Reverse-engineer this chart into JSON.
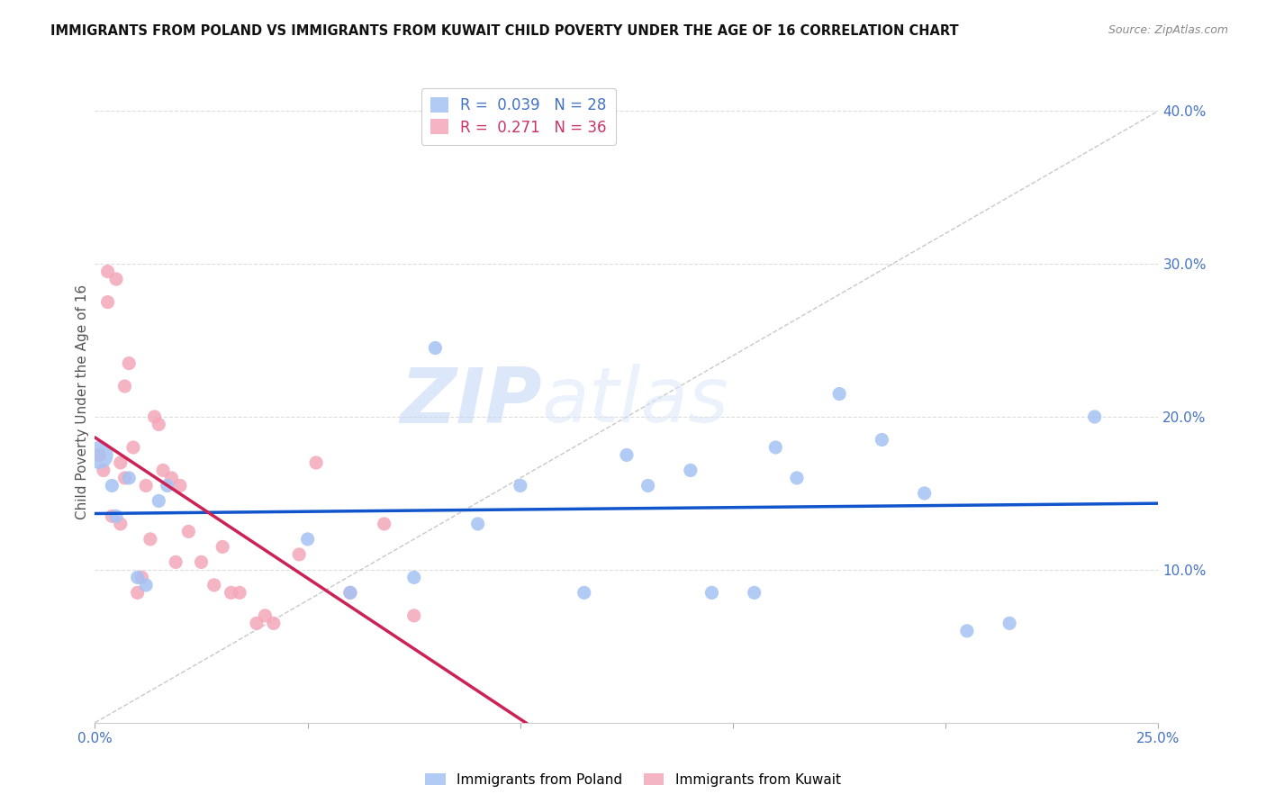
{
  "title": "IMMIGRANTS FROM POLAND VS IMMIGRANTS FROM KUWAIT CHILD POVERTY UNDER THE AGE OF 16 CORRELATION CHART",
  "source": "Source: ZipAtlas.com",
  "ylabel": "Child Poverty Under the Age of 16",
  "xlim": [
    0.0,
    0.25
  ],
  "ylim": [
    0.0,
    0.42
  ],
  "xticks": [
    0.0,
    0.05,
    0.1,
    0.15,
    0.2,
    0.25
  ],
  "xtick_labels": [
    "0.0%",
    "",
    "",
    "",
    "",
    "25.0%"
  ],
  "yticks": [
    0.1,
    0.2,
    0.3,
    0.4
  ],
  "ytick_labels": [
    "10.0%",
    "20.0%",
    "30.0%",
    "40.0%"
  ],
  "poland_color": "#a4c2f4",
  "kuwait_color": "#f4a7b9",
  "poland_R": 0.039,
  "poland_N": 28,
  "kuwait_R": 0.271,
  "kuwait_N": 36,
  "trend_line_color_poland": "#1155cc",
  "trend_line_color_kuwait": "#cc2255",
  "diagonal_line_color": "#bbbbbb",
  "watermark_zip": "ZIP",
  "watermark_atlas": "atlas",
  "poland_scatter_x": [
    0.001,
    0.004,
    0.005,
    0.008,
    0.01,
    0.012,
    0.015,
    0.017,
    0.05,
    0.06,
    0.075,
    0.08,
    0.09,
    0.1,
    0.115,
    0.125,
    0.13,
    0.14,
    0.145,
    0.155,
    0.16,
    0.165,
    0.175,
    0.185,
    0.195,
    0.205,
    0.215,
    0.235
  ],
  "poland_scatter_y": [
    0.175,
    0.155,
    0.135,
    0.16,
    0.095,
    0.09,
    0.145,
    0.155,
    0.12,
    0.085,
    0.095,
    0.245,
    0.13,
    0.155,
    0.085,
    0.175,
    0.155,
    0.165,
    0.085,
    0.085,
    0.18,
    0.16,
    0.215,
    0.185,
    0.15,
    0.06,
    0.065,
    0.2
  ],
  "kuwait_scatter_x": [
    0.001,
    0.002,
    0.003,
    0.003,
    0.004,
    0.005,
    0.006,
    0.006,
    0.007,
    0.007,
    0.008,
    0.009,
    0.01,
    0.011,
    0.012,
    0.013,
    0.014,
    0.015,
    0.016,
    0.018,
    0.019,
    0.02,
    0.022,
    0.025,
    0.028,
    0.03,
    0.032,
    0.034,
    0.038,
    0.04,
    0.042,
    0.048,
    0.052,
    0.06,
    0.068,
    0.075
  ],
  "kuwait_scatter_y": [
    0.175,
    0.165,
    0.275,
    0.295,
    0.135,
    0.29,
    0.13,
    0.17,
    0.22,
    0.16,
    0.235,
    0.18,
    0.085,
    0.095,
    0.155,
    0.12,
    0.2,
    0.195,
    0.165,
    0.16,
    0.105,
    0.155,
    0.125,
    0.105,
    0.09,
    0.115,
    0.085,
    0.085,
    0.065,
    0.07,
    0.065,
    0.11,
    0.17,
    0.085,
    0.13,
    0.07
  ],
  "legend_label_poland": "Immigrants from Poland",
  "legend_label_kuwait": "Immigrants from Kuwait",
  "axis_label_color": "#4472c4",
  "legend_R_color_poland": "#4472c4",
  "legend_R_color_kuwait": "#e06080",
  "legend_N_color": "#222222"
}
